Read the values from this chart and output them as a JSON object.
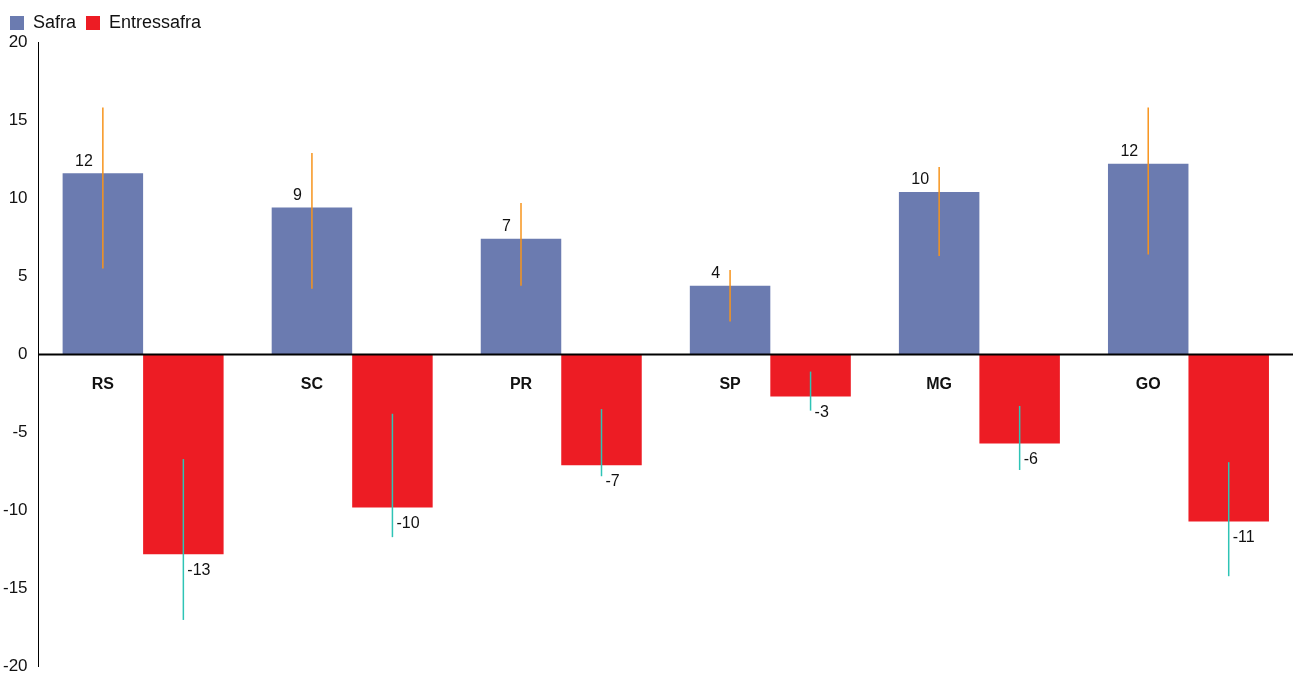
{
  "chart_data": {
    "type": "bar",
    "categories": [
      "RS",
      "SC",
      "PR",
      "SP",
      "MG",
      "GO"
    ],
    "series": [
      {
        "name": "Safra",
        "color": "#6b7bb0",
        "values": [
          11.6,
          9.4,
          7.4,
          4.4,
          10.4,
          12.2
        ],
        "errors": [
          [
            5.5,
            15.8
          ],
          [
            4.2,
            12.9
          ],
          [
            4.4,
            9.7
          ],
          [
            2.1,
            5.4
          ],
          [
            6.3,
            12.0
          ],
          [
            6.4,
            15.8
          ]
        ],
        "value_labels": [
          "12",
          "9",
          "7",
          "4",
          "10",
          "12"
        ]
      },
      {
        "name": "Entressafra",
        "color": "#ed1c24",
        "values": [
          -12.8,
          -9.8,
          -7.1,
          -2.7,
          -5.7,
          -10.7
        ],
        "errors": [
          [
            -17.0,
            -6.7
          ],
          [
            -11.7,
            -3.8
          ],
          [
            -7.8,
            -3.5
          ],
          [
            -3.6,
            -1.1
          ],
          [
            -7.4,
            -3.3
          ],
          [
            -14.2,
            -6.9
          ]
        ],
        "value_labels": [
          "-13",
          "-10",
          "-7",
          "-3",
          "-6",
          "-11"
        ]
      }
    ],
    "ylim": [
      -20,
      20
    ],
    "yticks": [
      -20,
      -15,
      -10,
      -5,
      0,
      5,
      10,
      15,
      20
    ],
    "grid": false,
    "legend": "top left"
  }
}
